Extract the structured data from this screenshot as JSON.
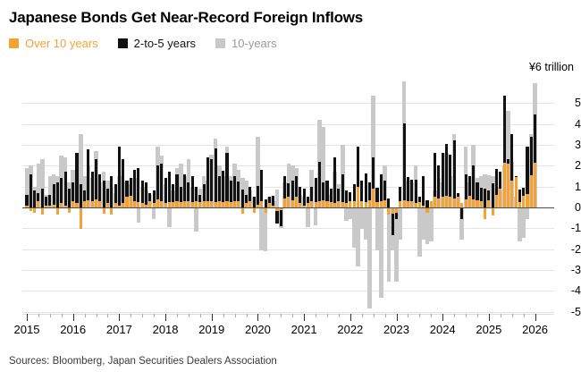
{
  "header": {
    "title": "Japanese Bonds Get Near-Record Foreign Inflows"
  },
  "legend": {
    "items": [
      {
        "label": "Over 10 years",
        "color": "#F6A232",
        "text_color": "#F6A232"
      },
      {
        "label": "2-to-5 years",
        "color": "#111111",
        "text_color": "#111111"
      },
      {
        "label": "10-years",
        "color": "#C9C9C9",
        "text_color": "#9B9B9B"
      }
    ]
  },
  "axis": {
    "top_label": "¥6 trillion",
    "y_ticks": [
      5,
      4,
      3,
      2,
      1,
      0,
      -1,
      -2,
      -3,
      -4,
      -5
    ],
    "x_ticks": [
      "2015",
      "2016",
      "2017",
      "2018",
      "2019",
      "2020",
      "2021",
      "2022",
      "2023",
      "2024",
      "2025",
      "2026"
    ]
  },
  "footer": {
    "source": "Sources: Bloomberg, Japan Securities Dealers Association"
  },
  "colors": {
    "over_10_years": "#F6A232",
    "two_to_five_years": "#111111",
    "ten_years": "#C9C9C9",
    "grid": "#E4E4E4",
    "zero_line": "#4D4D4D",
    "background": "#FFFFFF"
  },
  "chart_data": {
    "type": "bar",
    "overlay": true,
    "title": "Japanese Bonds Get Near-Record Foreign Inflows",
    "ylabel": "¥ trillion",
    "ylim": [
      -5.5,
      6.3
    ],
    "grid": true,
    "legend_position": "top-left",
    "x": {
      "start": "2015-01",
      "frequency": "monthly",
      "count": 133
    },
    "x_tick_labels": [
      "2015",
      "2016",
      "2017",
      "2018",
      "2019",
      "2020",
      "2021",
      "2022",
      "2023",
      "2024",
      "2025",
      "2026"
    ],
    "series": [
      {
        "name": "Over 10 years",
        "color": "#F6A232",
        "values": [
          0.1,
          -0.15,
          -0.2,
          0.3,
          -0.3,
          0.1,
          0.1,
          0.15,
          -0.3,
          0.2,
          0.1,
          -0.2,
          0.3,
          0.2,
          -1.0,
          0.3,
          0.35,
          0.3,
          0.4,
          0.3,
          -0.25,
          0.2,
          -0.3,
          0.2,
          0.1,
          0.2,
          0.5,
          0.55,
          0.3,
          0.25,
          0.2,
          0.15,
          0.3,
          0.2,
          0.4,
          0.3,
          0.2,
          0.25,
          0.25,
          0.3,
          0.25,
          0.3,
          0.3,
          0.25,
          0.3,
          0.25,
          0.3,
          0.3,
          0.3,
          0.25,
          0.3,
          0.25,
          0.3,
          0.25,
          0.3,
          0.3,
          -0.25,
          0.2,
          0.3,
          -0.2,
          0.15,
          0.3,
          -0.2,
          0.2,
          0.1,
          -0.15,
          -0.1,
          0.45,
          0.5,
          0.35,
          0.5,
          0.2,
          0.1,
          0.2,
          0.3,
          0.25,
          0.3,
          0.35,
          0.3,
          0.25,
          0.2,
          0.3,
          0.25,
          0.2,
          0.3,
          0.3,
          1.0,
          0.3,
          0.25,
          0.35,
          0.9,
          0.25,
          0.3,
          0.35,
          -0.3,
          -0.25,
          -0.2,
          0.3,
          0.35,
          0.3,
          0.3,
          0.2,
          0.25,
          0.1,
          -0.2,
          0.3,
          0.5,
          0.45,
          0.5,
          0.55,
          0.5,
          0.45,
          0.5,
          0.2,
          0.4,
          0.55,
          0.4,
          0.35,
          0.3,
          -0.5,
          0.35,
          -0.35,
          0.6,
          0.9,
          2.15,
          2.1,
          1.3,
          1.45,
          0.25,
          0.55,
          0.65,
          1.55,
          2.15
        ]
      },
      {
        "name": "2-to-5 years",
        "color": "#111111",
        "values": [
          0.6,
          1.6,
          0.8,
          0.7,
          0.9,
          0.5,
          0.6,
          1.1,
          1.2,
          1.4,
          1.7,
          0.9,
          1.2,
          2.6,
          1.1,
          0.8,
          2.8,
          1.7,
          2.3,
          1.6,
          1.3,
          0.9,
          1.5,
          1.1,
          2.9,
          2.3,
          1.3,
          1.4,
          1.8,
          1.9,
          1.3,
          1.2,
          0.7,
          0.8,
          2.0,
          2.1,
          1.4,
          1.7,
          1.1,
          1.6,
          1.0,
          1.6,
          1.2,
          1.5,
          1.0,
          0.6,
          1.1,
          2.4,
          2.3,
          2.85,
          1.5,
          1.75,
          2.6,
          1.3,
          1.5,
          1.25,
          0.85,
          0.6,
          1.0,
          0.5,
          1.05,
          1.8,
          0.4,
          0.5,
          0.55,
          -0.75,
          -0.85,
          1.5,
          1.15,
          1.3,
          1.5,
          1.0,
          0.9,
          0.5,
          1.0,
          1.4,
          2.2,
          1.2,
          1.3,
          0.9,
          2.4,
          0.9,
          1.6,
          0.8,
          0.75,
          1.1,
          2.9,
          1.3,
          1.65,
          1.2,
          2.4,
          0.95,
          1.6,
          1.3,
          0.45,
          -1.3,
          -0.5,
          1.0,
          4.05,
          1.45,
          1.35,
          1.35,
          0.5,
          1.5,
          0.35,
          0.3,
          2.6,
          2.0,
          2.6,
          3.05,
          2.55,
          3.2,
          0.7,
          -0.5,
          1.6,
          1.5,
          2.0,
          1.2,
          0.95,
          0.9,
          0.8,
          1.15,
          1.85,
          1.7,
          5.35,
          2.3,
          3.5,
          1.5,
          0.85,
          0.95,
          2.9,
          3.4,
          4.45
        ]
      },
      {
        "name": "10-years",
        "color": "#C9C9C9",
        "values": [
          1.9,
          2.0,
          1.0,
          2.1,
          2.3,
          0.6,
          1.5,
          1.6,
          1.5,
          2.5,
          2.4,
          1.2,
          1.8,
          2.2,
          3.5,
          1.5,
          2.0,
          1.4,
          2.7,
          1.2,
          1.7,
          1.3,
          1.0,
          0.7,
          1.5,
          1.2,
          0.9,
          1.1,
          1.4,
          -0.7,
          1.0,
          0.8,
          0.6,
          -0.5,
          2.9,
          2.5,
          1.1,
          -0.9,
          0.8,
          1.9,
          2.1,
          1.5,
          2.3,
          1.0,
          -1.1,
          0.9,
          1.5,
          1.3,
          2.55,
          3.3,
          2.0,
          1.5,
          2.9,
          1.5,
          2.1,
          1.8,
          1.4,
          1.3,
          0.8,
          0.5,
          3.4,
          -2.0,
          -2.05,
          0.5,
          0.3,
          0.85,
          -0.95,
          1.2,
          2.1,
          2.0,
          1.9,
          0.6,
          0.5,
          -0.9,
          1.8,
          -0.8,
          4.2,
          3.85,
          1.0,
          0.6,
          1.7,
          1.1,
          3.0,
          -0.6,
          -0.5,
          -1.9,
          -2.8,
          -1.0,
          -1.5,
          -4.8,
          5.35,
          -2.0,
          -4.3,
          2.0,
          -3.5,
          -2.0,
          -3.5,
          -1.5,
          6.05,
          1.3,
          1.2,
          2.0,
          -2.3,
          -1.5,
          -1.7,
          -1.6,
          0.8,
          1.4,
          1.2,
          2.6,
          1.5,
          3.5,
          0.5,
          -1.5,
          2.9,
          1.2,
          3.0,
          1.4,
          1.5,
          1.6,
          1.55,
          1.5,
          1.0,
          0.8,
          2.0,
          4.65,
          2.2,
          0.5,
          -1.6,
          -1.4,
          -0.5,
          3.5,
          5.95
        ]
      }
    ]
  }
}
